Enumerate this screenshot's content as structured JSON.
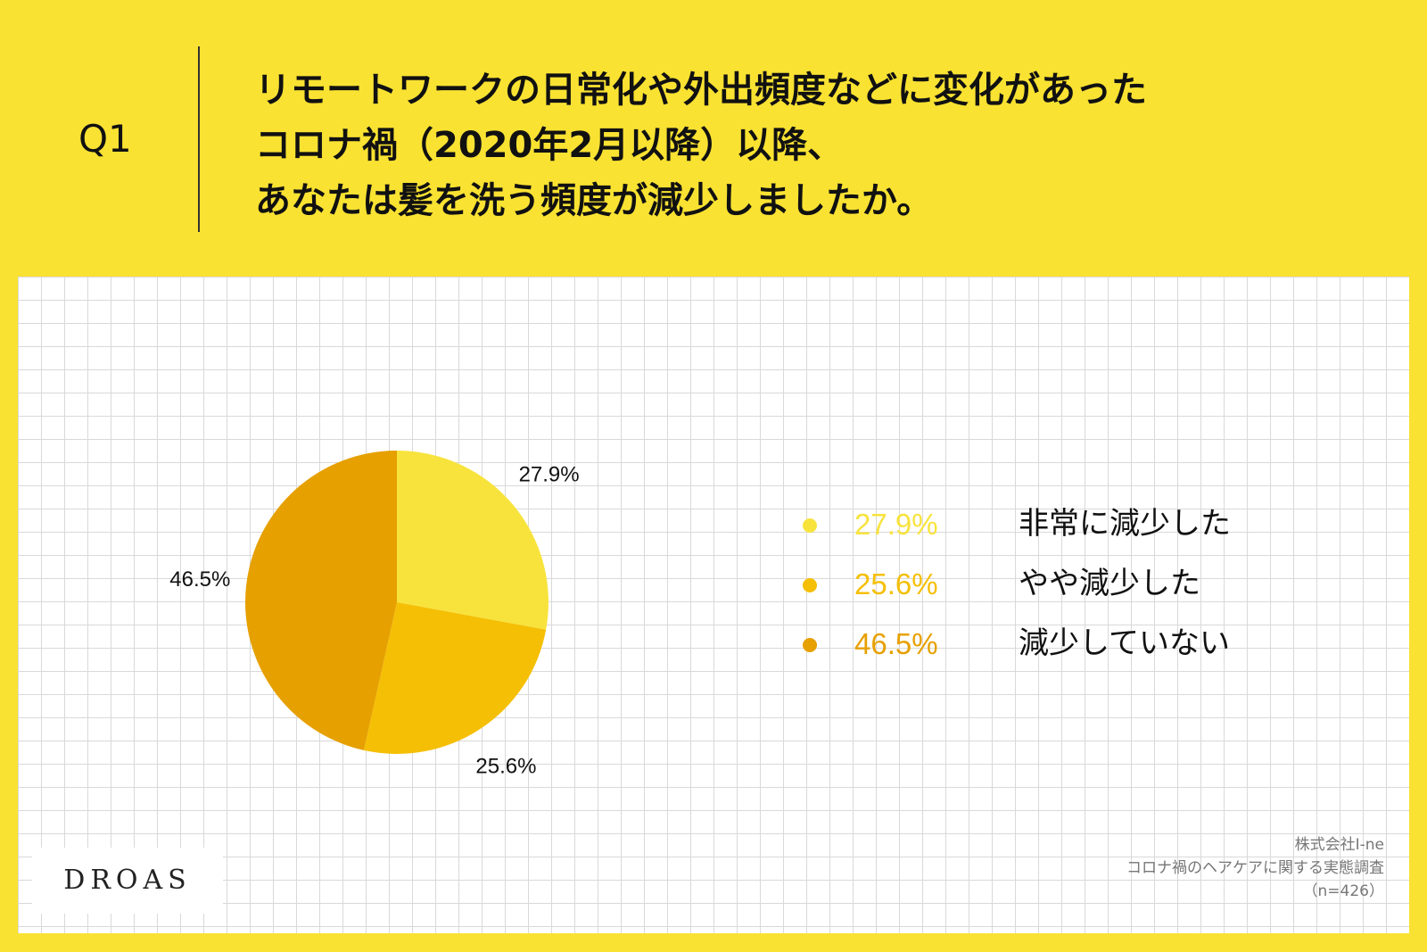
{
  "header": {
    "q_label": "Q1",
    "question_lines": [
      "リモートワークの日常化や外出頻度などに変化があった",
      "コロナ禍（2020年2月以降）以降、",
      "あなたは髪を洗う頻度が減少しましたか。"
    ]
  },
  "chart_data": {
    "type": "pie",
    "unit": "%",
    "slices": [
      {
        "label": "非常に減少した",
        "value": 27.9,
        "value_label": "27.9%",
        "color": "#f8e33d"
      },
      {
        "label": "やや減少した",
        "value": 25.6,
        "value_label": "25.6%",
        "color": "#f5bf05"
      },
      {
        "label": "減少していない",
        "value": 46.5,
        "value_label": "46.5%",
        "color": "#e6a000"
      }
    ],
    "legend": [
      {
        "value_label": "27.9%",
        "label": "非常に減少した",
        "color": "#f8e33d"
      },
      {
        "value_label": "25.6%",
        "label": "やや減少した",
        "color": "#f5bf05"
      },
      {
        "value_label": "46.5%",
        "label": "減少していない",
        "color": "#e6a000"
      }
    ],
    "legend_placement": "right",
    "grid": true
  },
  "footer": {
    "logo": "DROAS",
    "source_lines": [
      "株式会社I-ne",
      "コロナ禍のヘアケアに関する実態調査",
      "（n=426）"
    ]
  }
}
